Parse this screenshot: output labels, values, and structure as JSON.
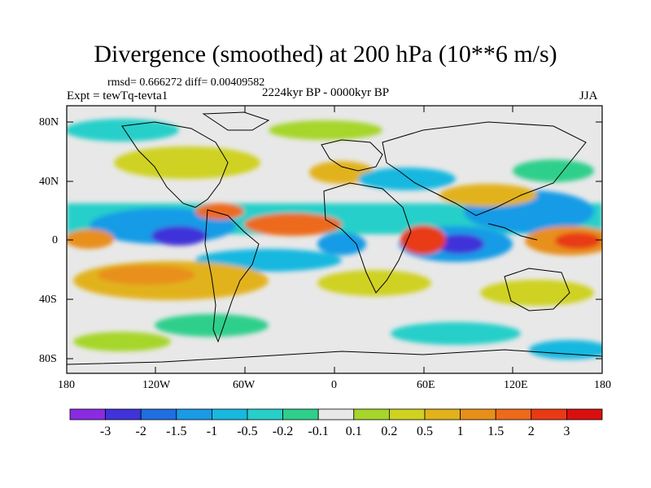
{
  "title": "Divergence (smoothed) at 200 hPa (10**6 m/s)",
  "stats_line": "rmsd= 0.666272 diff= 0.00409582",
  "experiment_label": "Expt = tewTq-tevta1",
  "period_label": "2224kyr BP - 0000kyr BP",
  "season_label": "JJA",
  "y_axis_labels": [
    "80N",
    "40N",
    "0",
    "40S",
    "80S"
  ],
  "x_axis_labels": [
    "180",
    "120W",
    "60W",
    "0",
    "60E",
    "120E",
    "180"
  ],
  "colorbar": {
    "labels": [
      "-3",
      "-2",
      "-1.5",
      "-1",
      "-0.5",
      "-0.2",
      "-0.1",
      "0.1",
      "0.2",
      "0.5",
      "1",
      "1.5",
      "2",
      "3"
    ],
    "colors": [
      "#8a2be2",
      "#3f33d9",
      "#1f6fe0",
      "#199be6",
      "#18b8e0",
      "#26cfc9",
      "#2ecf8b",
      "#e8e8e8",
      "#a6d62a",
      "#cfd221",
      "#e2b21a",
      "#e88f1a",
      "#ed6a1a",
      "#e83a14",
      "#d90f0f"
    ]
  },
  "map_colors": {
    "neutral": "#e8e8e8",
    "land": "#000000"
  }
}
